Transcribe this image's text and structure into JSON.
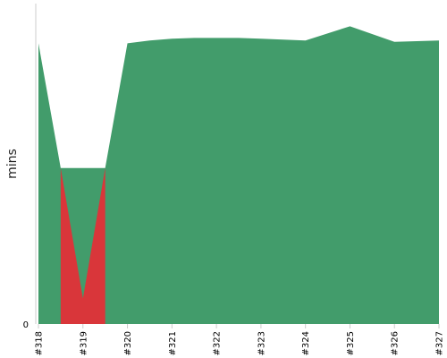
{
  "chart_data": {
    "type": "area",
    "title": "",
    "xlabel": "",
    "ylabel": "mins",
    "x_unit_hint": "build number",
    "categories": [
      "#318",
      "#319",
      "#320",
      "#321",
      "#322",
      "#323",
      "#324",
      "#325",
      "#326",
      "#327"
    ],
    "y_tick_labels": [
      "0"
    ],
    "ylim": [
      0,
      100
    ],
    "grid": false,
    "legend": "none",
    "series": [
      {
        "status": "success",
        "color": "#429c6b",
        "points": [
          {
            "x": 0,
            "y": 99
          },
          {
            "x": 0.5,
            "y": 55
          },
          {
            "x": 1.5,
            "y": 55
          },
          {
            "x": 2,
            "y": 99
          },
          {
            "x": 2.5,
            "y": 100
          },
          {
            "x": 3,
            "y": 100.6
          },
          {
            "x": 3.5,
            "y": 100.9
          },
          {
            "x": 4,
            "y": 100.9
          },
          {
            "x": 4.5,
            "y": 100.9
          },
          {
            "x": 5,
            "y": 100.6
          },
          {
            "x": 6,
            "y": 100
          },
          {
            "x": 7,
            "y": 105
          },
          {
            "x": 8,
            "y": 99.5
          },
          {
            "x": 9,
            "y": 100
          }
        ]
      },
      {
        "status": "failure",
        "color": "#d9363a",
        "points": [
          {
            "x": 0.5,
            "y": 55
          },
          {
            "x": 1,
            "y": 9
          },
          {
            "x": 1.5,
            "y": 55
          }
        ]
      }
    ]
  },
  "colors": {
    "success": "#429c6b",
    "failure": "#d9363a",
    "axis": "#cccccc"
  }
}
